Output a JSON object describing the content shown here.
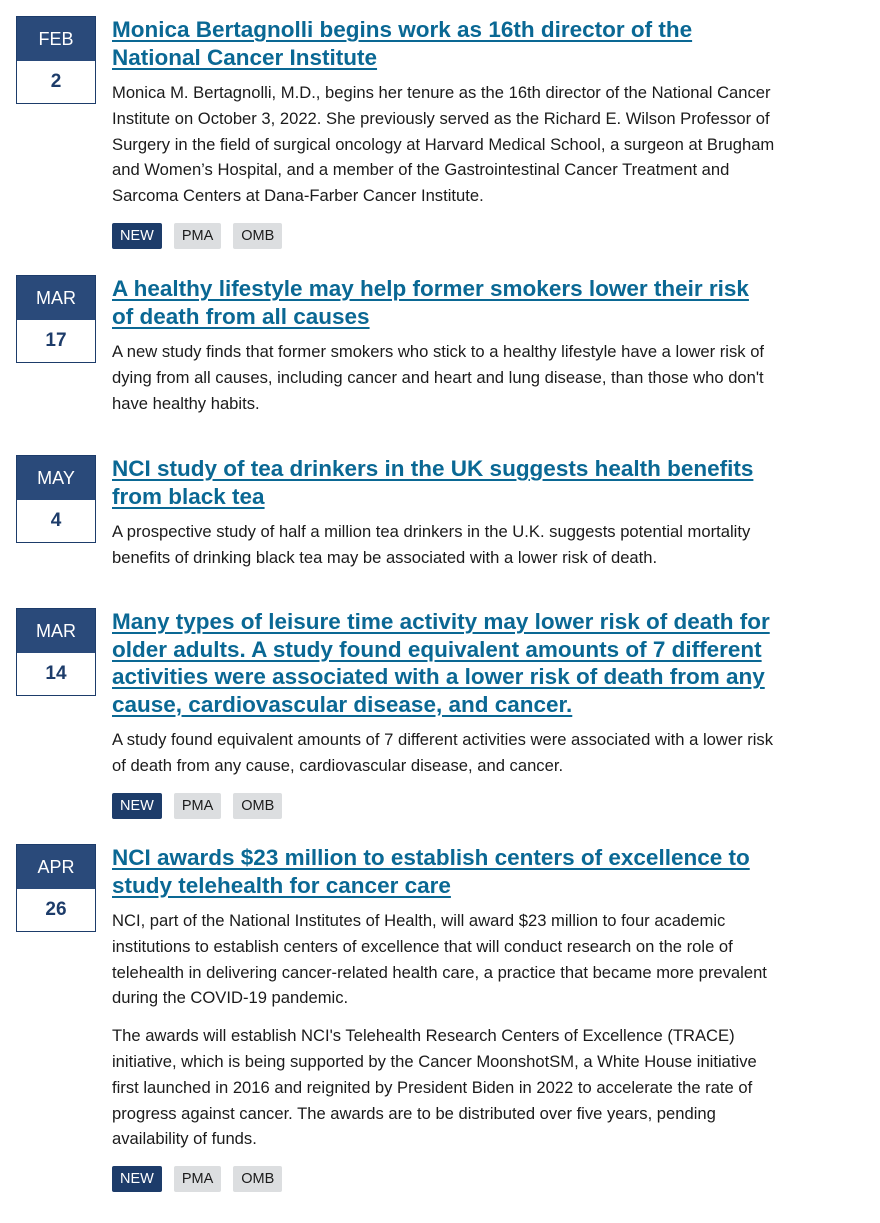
{
  "articles": [
    {
      "month": "FEB",
      "day": "2",
      "title": "Monica Bertagnolli begins work as 16th director of the National Cancer Institute",
      "summaries": [
        "Monica M. Bertagnolli, M.D., begins her tenure as the 16th director of the National Cancer Institute on October 3, 2022. She previously served as the Richard E. Wilson Professor of Surgery in the field of surgical oncology at Harvard Medical School, a surgeon at Brugham and Women’s Hospital, and a member of the Gastrointestinal Cancer Treatment and Sarcoma Centers at Dana-Farber Cancer Institute."
      ],
      "tags": [
        "NEW",
        "PMA",
        "OMB"
      ]
    },
    {
      "month": "MAR",
      "day": "17",
      "title": "A healthy lifestyle may help former smokers lower their risk of death from all causes",
      "summaries": [
        "A new study finds that former smokers who stick to a healthy lifestyle have a lower risk of dying from all causes, including cancer and heart and lung disease, than those who don't have healthy habits."
      ],
      "tags": []
    },
    {
      "month": "MAY",
      "day": "4",
      "title": "NCI study of tea drinkers in the UK suggests health benefits from black tea",
      "summaries": [
        "A prospective study of half a million tea drinkers in the U.K. suggests potential mortality benefits of drinking black tea may be associated with a lower risk of death."
      ],
      "tags": []
    },
    {
      "month": "MAR",
      "day": "14",
      "title": "Many types of leisure time activity may lower risk of death for older adults. A study found equivalent amounts of 7 different activities were associated with a lower risk of death from any cause, cardiovascular disease, and cancer.",
      "summaries": [
        "A study found equivalent amounts of 7 different activities were associated with a lower risk of death from any cause, cardiovascular disease, and cancer."
      ],
      "tags": [
        "NEW",
        "PMA",
        "OMB"
      ]
    },
    {
      "month": "APR",
      "day": "26",
      "title": "NCI awards $23 million to establish centers of excellence to study telehealth for cancer care",
      "summaries": [
        "NCI, part of the National Institutes of Health, will award $23 million to four academic institutions to establish centers of excellence that will conduct research on the role of telehealth in delivering cancer-related health care, a practice that became more prevalent during the COVID-19 pandemic.",
        "The awards will establish NCI's Telehealth Research Centers of Excellence (TRACE) initiative, which is being supported by the Cancer MoonshotSM, a White House initiative first launched in 2016 and reignited by President Biden in 2022 to accelerate the rate of progress against cancer. The awards are to be distributed over five years, pending availability of funds."
      ],
      "tags": [
        "NEW",
        "PMA",
        "OMB"
      ]
    }
  ],
  "colors": {
    "month_bg": "#2a4a7a",
    "day_text": "#1d3c6a",
    "title_link": "#0a6894",
    "tag_new_bg": "#1d3c6a",
    "tag_plain_bg": "#dcdee0"
  }
}
